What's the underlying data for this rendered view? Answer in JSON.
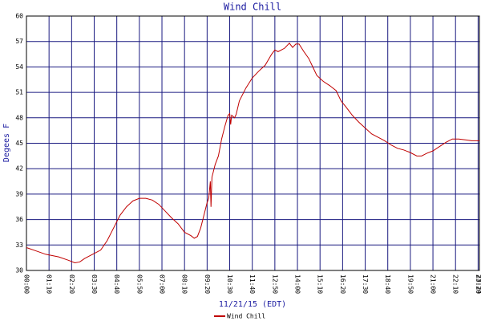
{
  "chart_data": {
    "type": "line",
    "title": "Wind Chill",
    "y_label": "Degees F",
    "x_label": "11/21/15 (EDT)",
    "grid": true,
    "legend": "bottom-left",
    "xlim": [
      0,
      1404
    ],
    "ylim": [
      30,
      60
    ],
    "yticks": [
      30,
      33,
      36,
      39,
      42,
      45,
      48,
      51,
      54,
      57,
      60
    ],
    "xticks": [
      {
        "value": 0,
        "label": "00:00"
      },
      {
        "value": 70,
        "label": "01:10"
      },
      {
        "value": 140,
        "label": "02:20"
      },
      {
        "value": 210,
        "label": "03:30"
      },
      {
        "value": 280,
        "label": "04:40"
      },
      {
        "value": 350,
        "label": "05:50"
      },
      {
        "value": 420,
        "label": "07:00"
      },
      {
        "value": 490,
        "label": "08:10"
      },
      {
        "value": 560,
        "label": "09:20"
      },
      {
        "value": 630,
        "label": "10:30"
      },
      {
        "value": 700,
        "label": "11:40"
      },
      {
        "value": 770,
        "label": "12:50"
      },
      {
        "value": 840,
        "label": "14:00"
      },
      {
        "value": 910,
        "label": "15:10"
      },
      {
        "value": 980,
        "label": "16:20"
      },
      {
        "value": 1050,
        "label": "17:30"
      },
      {
        "value": 1120,
        "label": "18:40"
      },
      {
        "value": 1190,
        "label": "19:50"
      },
      {
        "value": 1260,
        "label": "21:00"
      },
      {
        "value": 1330,
        "label": "22:10"
      },
      {
        "value": 1400,
        "label": "23:20"
      },
      {
        "value": 1404,
        "label": "23:24"
      }
    ],
    "x": [
      0,
      30,
      60,
      100,
      130,
      150,
      165,
      180,
      200,
      230,
      250,
      270,
      290,
      310,
      330,
      350,
      370,
      390,
      410,
      430,
      450,
      470,
      490,
      510,
      520,
      530,
      540,
      550,
      560,
      565,
      570,
      572,
      575,
      585,
      595,
      605,
      615,
      625,
      630,
      633,
      636,
      645,
      650,
      660,
      680,
      700,
      720,
      740,
      760,
      770,
      780,
      800,
      815,
      825,
      835,
      845,
      860,
      875,
      890,
      900,
      920,
      940,
      960,
      975,
      990,
      1010,
      1030,
      1050,
      1070,
      1090,
      1110,
      1130,
      1150,
      1170,
      1190,
      1210,
      1225,
      1240,
      1260,
      1280,
      1300,
      1320,
      1340,
      1360,
      1380,
      1404
    ],
    "series": [
      {
        "name": "Wind Chill",
        "color": "#c00000",
        "values": [
          32.7,
          32.3,
          31.9,
          31.6,
          31.2,
          30.9,
          31.0,
          31.4,
          31.8,
          32.4,
          33.5,
          35.0,
          36.5,
          37.5,
          38.2,
          38.5,
          38.5,
          38.3,
          37.8,
          37.0,
          36.2,
          35.5,
          34.5,
          34.1,
          33.8,
          34.0,
          35.0,
          36.5,
          38.0,
          38.5,
          40.5,
          37.5,
          41.0,
          42.5,
          43.5,
          45.5,
          47.0,
          48.3,
          48.5,
          47.2,
          48.3,
          48.0,
          48.4,
          50.0,
          51.5,
          52.7,
          53.5,
          54.2,
          55.5,
          56.0,
          55.8,
          56.2,
          56.8,
          56.3,
          56.7,
          56.7,
          55.8,
          55.0,
          53.8,
          53.0,
          52.3,
          51.8,
          51.2,
          50.0,
          49.3,
          48.3,
          47.5,
          46.8,
          46.1,
          45.7,
          45.3,
          44.8,
          44.4,
          44.2,
          43.9,
          43.5,
          43.5,
          43.8,
          44.1,
          44.6,
          45.1,
          45.5,
          45.5,
          45.4,
          45.3,
          45.3
        ]
      }
    ]
  }
}
